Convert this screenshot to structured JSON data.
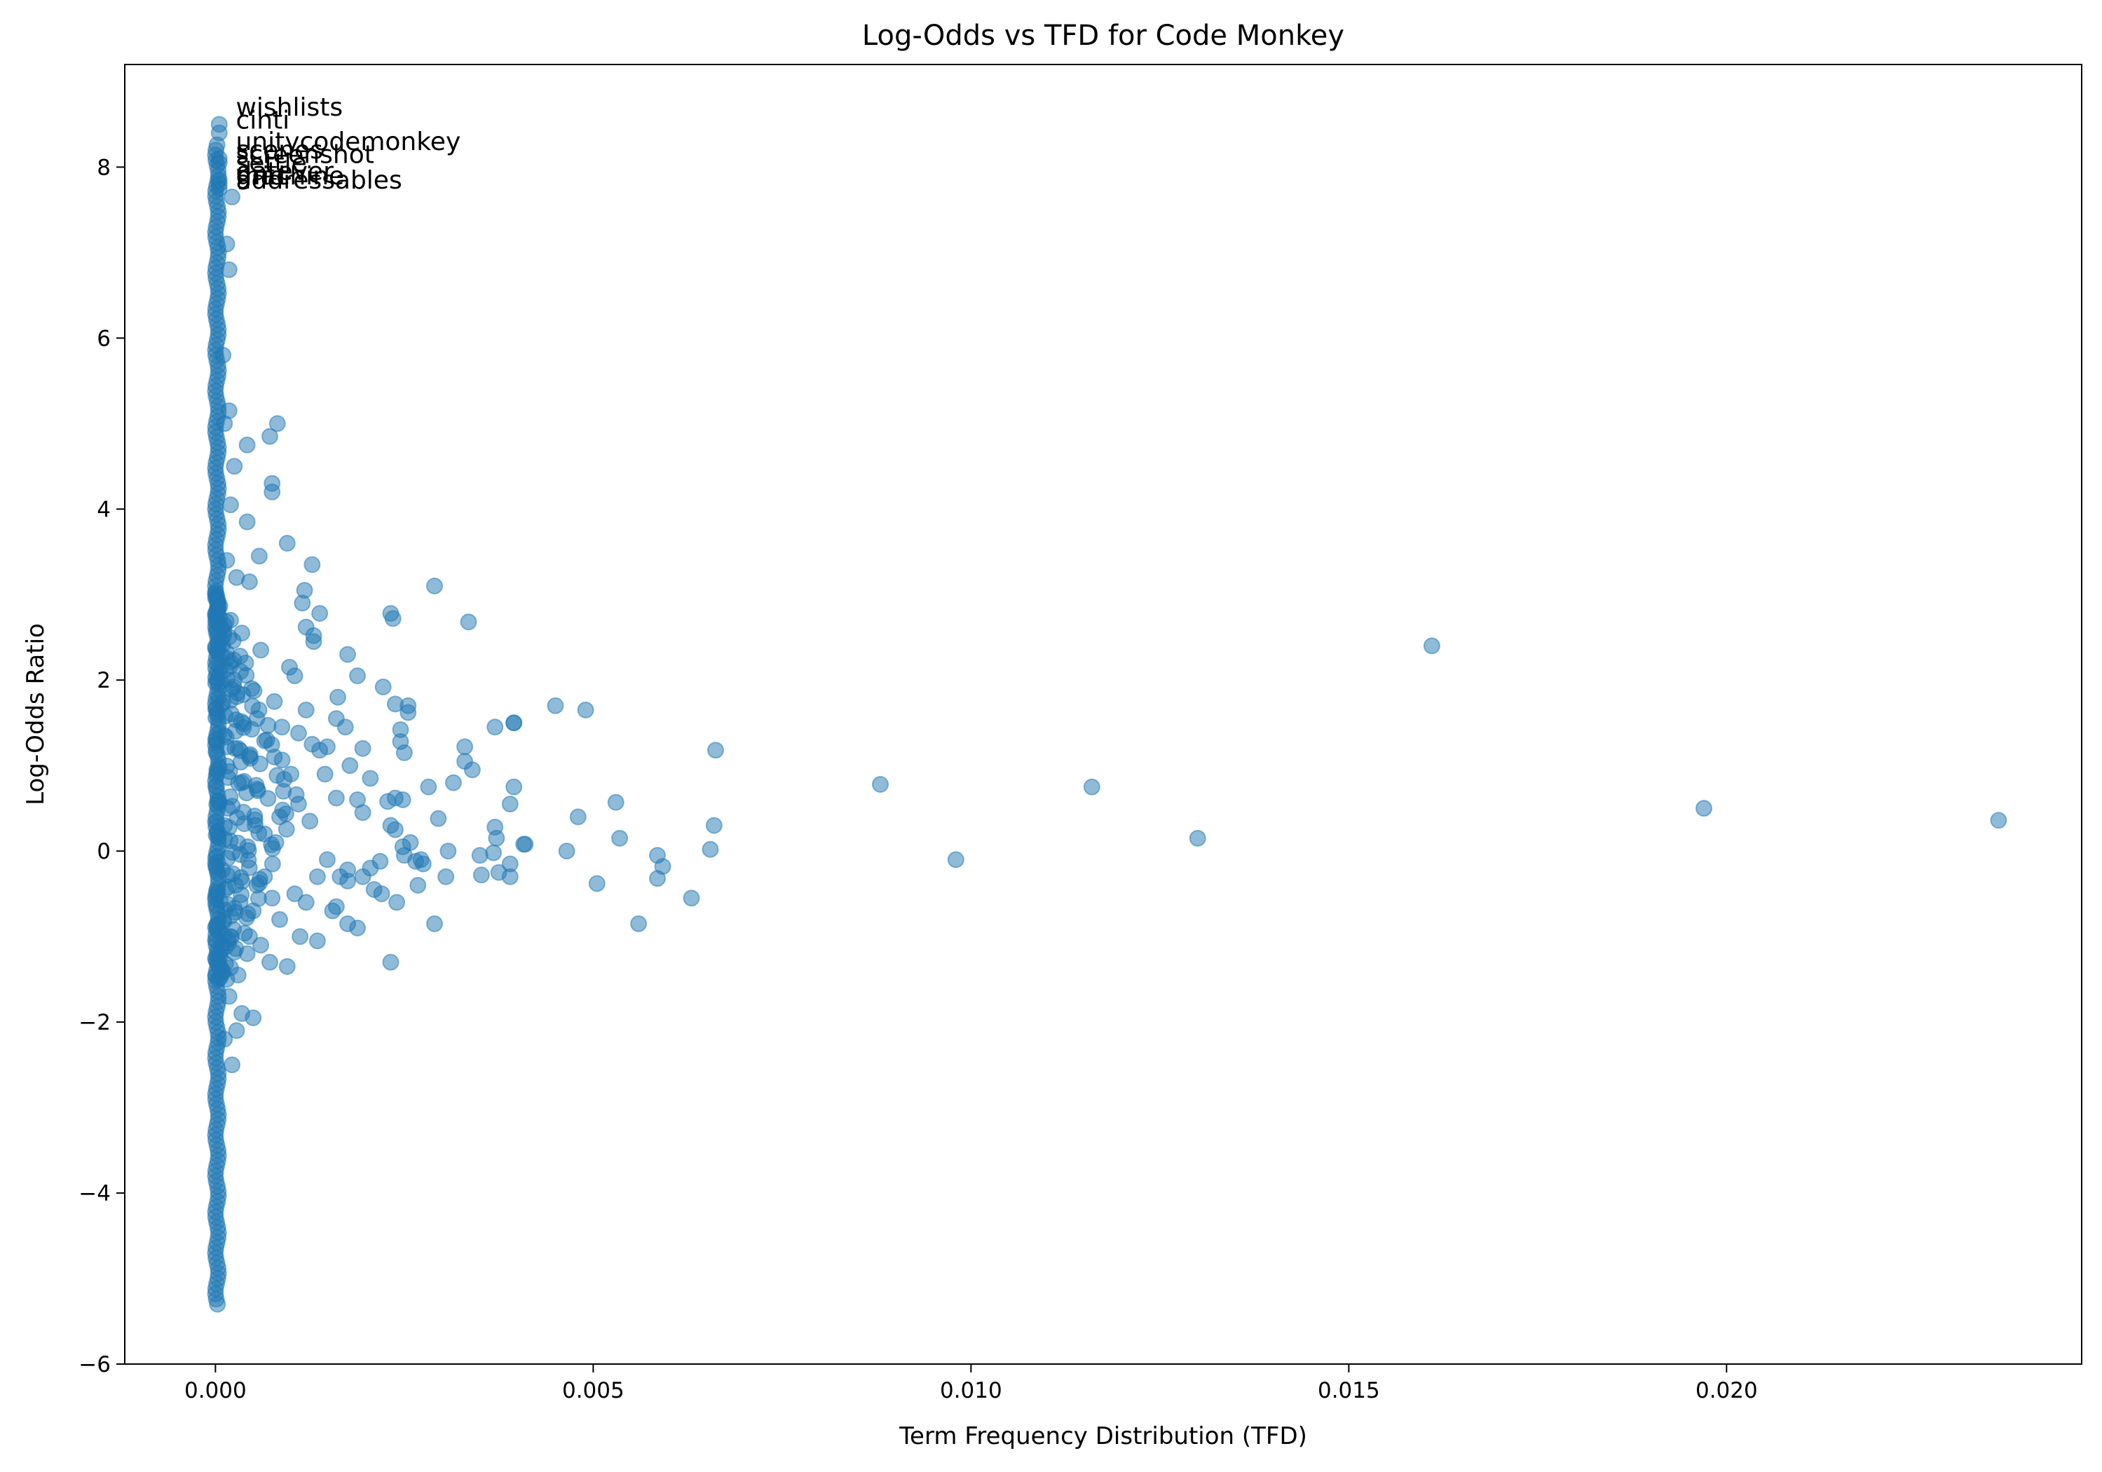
{
  "chart_data": {
    "type": "scatter",
    "title": "Log-Odds vs TFD for Code Monkey",
    "xlabel": "Term Frequency Distribution (TFD)",
    "ylabel": "Log-Odds Ratio",
    "xlim": [
      -0.0012,
      0.0247
    ],
    "ylim": [
      -6,
      9.2
    ],
    "x_ticks": [
      0.0,
      0.005,
      0.01,
      0.015,
      0.02
    ],
    "x_tick_labels": [
      "0.000",
      "0.005",
      "0.010",
      "0.015",
      "0.020"
    ],
    "y_ticks": [
      -6,
      -4,
      -2,
      0,
      2,
      4,
      6,
      8
    ],
    "y_tick_labels": [
      "−6",
      "−4",
      "−2",
      "0",
      "2",
      "4",
      "6",
      "8"
    ],
    "grid": false,
    "colors": {
      "point": "#1f77b4",
      "text": "#000000",
      "axes": "#000000",
      "background": "#ffffff"
    },
    "annotations": [
      {
        "text": "wishlists",
        "x": 0.00027,
        "y": 8.6
      },
      {
        "text": "cinti",
        "x": 0.00027,
        "y": 8.45
      },
      {
        "text": "unitycodemonkey",
        "x": 0.00027,
        "y": 8.2
      },
      {
        "text": "scenes",
        "x": 0.00027,
        "y": 8.1
      },
      {
        "text": "screenshot",
        "x": 0.00027,
        "y": 8.05
      },
      {
        "text": "settle",
        "x": 0.00027,
        "y": 7.95
      },
      {
        "text": "datever",
        "x": 0.00027,
        "y": 7.85
      },
      {
        "text": "grid",
        "x": 0.00027,
        "y": 7.8
      },
      {
        "text": "machine",
        "x": 0.00027,
        "y": 7.8
      },
      {
        "text": "addressables",
        "x": 0.00027,
        "y": 7.75
      }
    ],
    "series": [
      {
        "values": [
          [
            5e-05,
            8.5
          ],
          [
            5e-05,
            8.4
          ],
          [
            5e-05,
            8.1
          ],
          [
            5e-05,
            8.05
          ],
          [
            5e-05,
            7.85
          ],
          [
            5e-05,
            7.8
          ],
          [
            5e-05,
            7.75
          ],
          [
            0.00022,
            7.65
          ],
          [
            0.00015,
            7.1
          ],
          [
            0.00018,
            6.8
          ],
          [
            0.0001,
            5.8
          ],
          [
            0.00018,
            5.15
          ],
          [
            0.00012,
            5.0
          ],
          [
            0.00082,
            5.0
          ],
          [
            0.00072,
            4.85
          ],
          [
            0.00042,
            4.75
          ],
          [
            0.00025,
            4.5
          ],
          [
            0.00075,
            4.3
          ],
          [
            0.00075,
            4.2
          ],
          [
            0.0002,
            4.05
          ],
          [
            0.00042,
            3.85
          ],
          [
            0.00095,
            3.6
          ],
          [
            0.00058,
            3.45
          ],
          [
            0.00128,
            3.35
          ],
          [
            0.00028,
            3.2
          ],
          [
            0.00045,
            3.15
          ],
          [
            0.0029,
            3.1
          ],
          [
            0.00118,
            3.05
          ],
          [
            0.00115,
            2.9
          ],
          [
            0.00232,
            2.78
          ],
          [
            0.00235,
            2.72
          ],
          [
            0.00138,
            2.78
          ],
          [
            0.00335,
            2.68
          ],
          [
            0.0012,
            2.62
          ],
          [
            0.0013,
            2.52
          ],
          [
            0.0013,
            2.45
          ],
          [
            0.00175,
            2.3
          ],
          [
            0.00098,
            2.15
          ],
          [
            0.00105,
            2.05
          ],
          [
            0.00188,
            2.05
          ],
          [
            0.00222,
            1.92
          ],
          [
            0.00238,
            1.72
          ],
          [
            0.00255,
            1.7
          ],
          [
            0.00255,
            1.62
          ],
          [
            0.0045,
            1.7
          ],
          [
            0.0049,
            1.65
          ],
          [
            0.0037,
            1.45
          ],
          [
            0.00395,
            1.5
          ],
          [
            0.00395,
            1.5
          ],
          [
            0.00245,
            1.42
          ],
          [
            0.0033,
            1.22
          ],
          [
            0.0033,
            1.05
          ],
          [
            0.0034,
            0.95
          ],
          [
            0.0025,
            1.15
          ],
          [
            0.00245,
            1.28
          ],
          [
            0.00195,
            1.2
          ],
          [
            0.00162,
            1.8
          ],
          [
            0.0016,
            1.55
          ],
          [
            0.00172,
            1.45
          ],
          [
            0.00148,
            1.22
          ],
          [
            0.00138,
            1.18
          ],
          [
            0.00128,
            1.25
          ],
          [
            0.0012,
            1.65
          ],
          [
            0.00662,
            1.18
          ],
          [
            0.0161,
            2.4
          ],
          [
            0.0088,
            0.78
          ],
          [
            0.0116,
            0.75
          ],
          [
            0.0197,
            0.5
          ],
          [
            0.0236,
            0.36
          ],
          [
            0.013,
            0.15
          ],
          [
            0.0098,
            -0.1
          ],
          [
            0.00395,
            0.75
          ],
          [
            0.00315,
            0.8
          ],
          [
            0.00282,
            0.75
          ],
          [
            0.00205,
            0.85
          ],
          [
            0.00178,
            1.0
          ],
          [
            0.00145,
            0.9
          ],
          [
            0.0016,
            0.62
          ],
          [
            0.00188,
            0.6
          ],
          [
            0.00195,
            0.45
          ],
          [
            0.00228,
            0.58
          ],
          [
            0.00238,
            0.62
          ],
          [
            0.00248,
            0.6
          ],
          [
            0.00295,
            0.38
          ],
          [
            0.0039,
            0.55
          ],
          [
            0.0048,
            0.4
          ],
          [
            0.0053,
            0.57
          ],
          [
            0.00535,
            0.15
          ],
          [
            0.0066,
            0.3
          ],
          [
            0.0041,
            0.08
          ],
          [
            0.00408,
            0.08
          ],
          [
            0.00465,
            0.0
          ],
          [
            0.00655,
            0.02
          ],
          [
            0.0037,
            0.28
          ],
          [
            0.00372,
            0.15
          ],
          [
            0.00368,
            -0.02
          ],
          [
            0.0035,
            -0.05
          ],
          [
            0.00308,
            0.0
          ],
          [
            0.00258,
            0.1
          ],
          [
            0.00232,
            0.3
          ],
          [
            0.00238,
            0.25
          ],
          [
            0.00248,
            0.05
          ],
          [
            0.0025,
            -0.05
          ],
          [
            0.00265,
            -0.12
          ],
          [
            0.00275,
            -0.15
          ],
          [
            0.00272,
            -0.1
          ],
          [
            0.00218,
            -0.12
          ],
          [
            0.00205,
            -0.2
          ],
          [
            0.00175,
            -0.22
          ],
          [
            0.00165,
            -0.3
          ],
          [
            0.00175,
            -0.35
          ],
          [
            0.00195,
            -0.3
          ],
          [
            0.0021,
            -0.45
          ],
          [
            0.0022,
            -0.5
          ],
          [
            0.0024,
            -0.6
          ],
          [
            0.00268,
            -0.4
          ],
          [
            0.00305,
            -0.3
          ],
          [
            0.00352,
            -0.28
          ],
          [
            0.00375,
            -0.25
          ],
          [
            0.0039,
            -0.3
          ],
          [
            0.0039,
            -0.15
          ],
          [
            0.00585,
            -0.05
          ],
          [
            0.00592,
            -0.18
          ],
          [
            0.00585,
            -0.32
          ],
          [
            0.00505,
            -0.38
          ],
          [
            0.0063,
            -0.55
          ],
          [
            0.0056,
            -0.85
          ],
          [
            0.0029,
            -0.85
          ],
          [
            0.00232,
            -1.3
          ],
          [
            0.00188,
            -0.9
          ],
          [
            0.00175,
            -0.85
          ],
          [
            0.0016,
            -0.65
          ],
          [
            0.00155,
            -0.7
          ],
          [
            0.00135,
            -1.05
          ],
          [
            0.00112,
            -1.0
          ],
          [
            0.00095,
            -1.35
          ],
          [
            0.00072,
            -1.3
          ],
          [
            0.0012,
            -0.6
          ],
          [
            0.00105,
            -0.5
          ],
          [
            0.00135,
            -0.3
          ],
          [
            0.00148,
            -0.1
          ],
          [
            0.0005,
            -1.95
          ],
          [
            0.00035,
            -1.9
          ],
          [
            0.00028,
            -2.1
          ],
          [
            0.00022,
            -2.5
          ],
          [
            0.00018,
            -1.7
          ],
          [
            0.0003,
            -1.45
          ],
          [
            0.00042,
            -1.2
          ],
          [
            0.0006,
            -1.1
          ],
          [
            0.00065,
            0.2
          ],
          [
            0.00085,
            0.4
          ],
          [
            0.0009,
            0.7
          ],
          [
            0.001,
            0.9
          ],
          [
            0.00078,
            1.1
          ],
          [
            0.00068,
            1.3
          ],
          [
            0.00055,
            1.55
          ],
          [
            0.00048,
            1.9
          ],
          [
            0.0004,
            2.2
          ],
          [
            0.00035,
            2.55
          ],
          [
            0.0006,
            2.35
          ],
          [
            0.00078,
            1.75
          ],
          [
            0.00088,
            1.45
          ],
          [
            0.0011,
            1.38
          ],
          [
            0.0011,
            0.55
          ],
          [
            0.00125,
            0.35
          ],
          [
            0.00065,
            -0.3
          ],
          [
            0.00075,
            -0.55
          ],
          [
            0.00085,
            -0.8
          ],
          [
            0.0005,
            -0.7
          ],
          [
            0.00045,
            -1.0
          ],
          [
            0.00055,
            -0.4
          ],
          [
            0.0008,
            0.1
          ],
          [
            0.00035,
            0.8
          ],
          [
            0.0003,
            1.2
          ],
          [
            0.00025,
            2.0
          ],
          [
            0.0002,
            2.7
          ],
          [
            0.00015,
            3.4
          ],
          [
            0.0002,
            -1.0
          ],
          [
            0.00015,
            -1.5
          ],
          [
            0.00012,
            -2.2
          ],
          [
            0.00012,
            0.3
          ]
        ]
      }
    ]
  }
}
